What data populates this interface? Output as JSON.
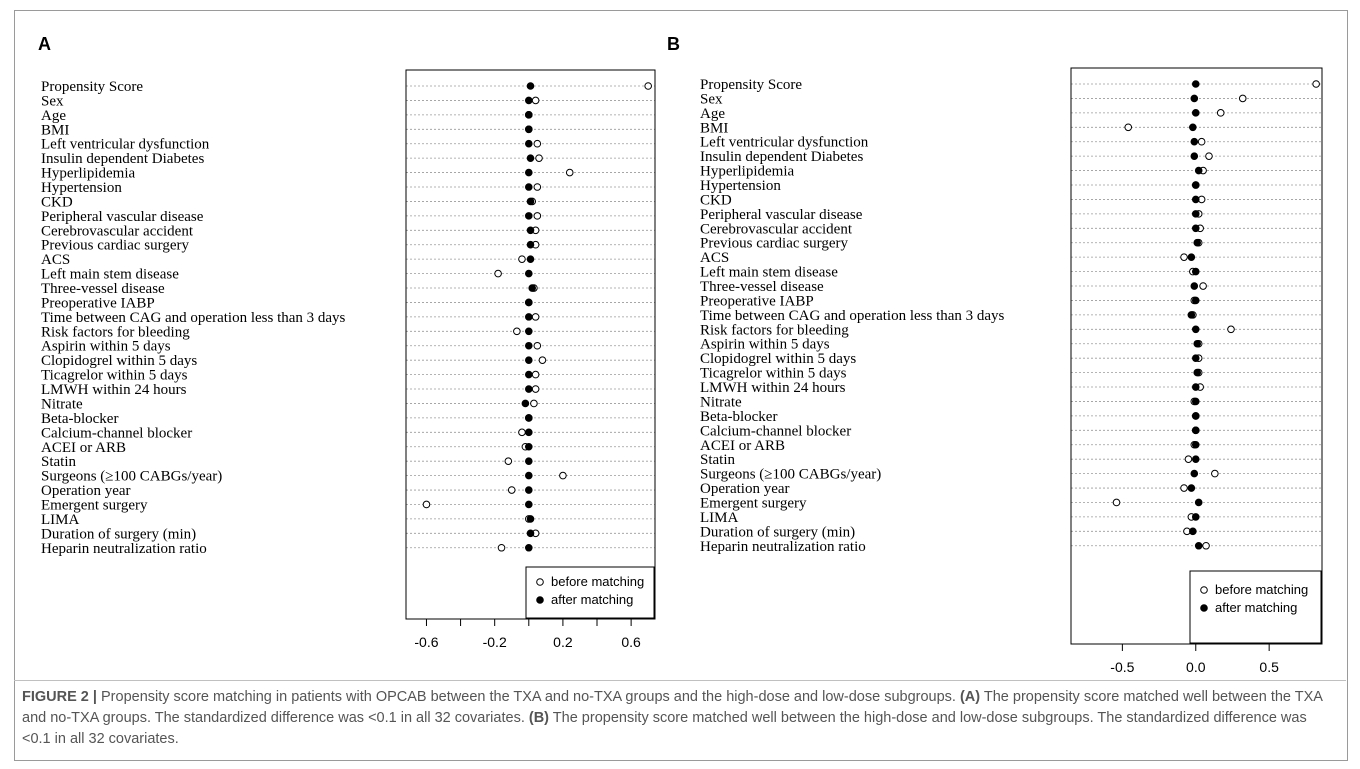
{
  "caption": {
    "prefix": "FIGURE 2 |",
    "intro": "Propensity score matching in patients with OPCAB between the TXA and no-TXA groups and the high-dose and low-dose subgroups.",
    "a_tag": "(A)",
    "a_text": "The propensity score matched well between the TXA and no-TXA groups. The standardized difference was <0.1 in all 32 covariates.",
    "b_tag": "(B)",
    "b_text": "The propensity score matched well between the high-dose and low-dose subgroups. The standardized difference was <0.1 in all 32 covariates."
  },
  "chart_data": [
    {
      "type": "scatter",
      "panel": "A",
      "xlim": [
        -0.72,
        0.74
      ],
      "xticks": [
        -0.6,
        -0.4,
        -0.2,
        0.0,
        0.2,
        0.4,
        0.6
      ],
      "xtick_labels": [
        "-0.6",
        "",
        "-0.2",
        "",
        "0.2",
        "",
        "0.6"
      ],
      "grid": "horizontal dotted",
      "legend_position": "bottom-right",
      "legend": [
        "before matching",
        "after matching"
      ],
      "categories": [
        "Propensity Score",
        "Sex",
        "Age",
        "BMI",
        "Left ventricular dysfunction",
        "Insulin dependent Diabetes",
        "Hyperlipidemia",
        "Hypertension",
        "CKD",
        "Peripheral vascular disease",
        "Cerebrovascular accident",
        "Previous cardiac surgery",
        "ACS",
        "Left main stem disease",
        "Three-vessel disease",
        "Preoperative IABP",
        "Time between CAG and operation less than 3 days",
        "Risk factors for bleeding",
        "Aspirin within 5 days",
        "Clopidogrel within 5 days",
        "Ticagrelor within 5 days",
        "LMWH within 24 hours",
        "Nitrate",
        "Beta-blocker",
        "Calcium-channel blocker",
        "ACEI or ARB",
        "Statin",
        "Surgeons (≥100 CABGs/year)",
        "Operation year",
        "Emergent surgery",
        "LIMA",
        "Duration of surgery (min)",
        "Heparin neutralization ratio"
      ],
      "series": [
        {
          "name": "before matching",
          "values": [
            0.7,
            0.04,
            0.0,
            0.0,
            0.05,
            0.06,
            0.24,
            0.05,
            0.02,
            0.05,
            0.04,
            0.04,
            -0.04,
            -0.18,
            0.03,
            0.0,
            0.04,
            -0.07,
            0.05,
            0.08,
            0.04,
            0.04,
            0.03,
            0.0,
            -0.04,
            -0.02,
            -0.12,
            0.2,
            -0.1,
            -0.6,
            0.0,
            0.04,
            -0.16
          ]
        },
        {
          "name": "after matching",
          "values": [
            0.01,
            0.0,
            0.0,
            0.0,
            0.0,
            0.01,
            0.0,
            0.0,
            0.01,
            0.0,
            0.01,
            0.01,
            0.01,
            0.0,
            0.02,
            0.0,
            0.0,
            0.0,
            0.0,
            0.0,
            0.0,
            0.0,
            -0.02,
            0.0,
            0.0,
            0.0,
            0.0,
            0.0,
            0.0,
            0.0,
            0.01,
            0.01,
            0.0
          ]
        }
      ]
    },
    {
      "type": "scatter",
      "panel": "B",
      "xlim": [
        -0.85,
        0.86
      ],
      "xticks": [
        -0.5,
        0.0,
        0.5
      ],
      "xtick_labels": [
        "-0.5",
        "0.0",
        "0.5"
      ],
      "grid": "horizontal dotted",
      "legend_position": "bottom-right",
      "legend": [
        "before matching",
        "after matching"
      ],
      "categories": [
        "Propensity Score",
        "Sex",
        "Age",
        "BMI",
        "Left ventricular dysfunction",
        "Insulin dependent Diabetes",
        "Hyperlipidemia",
        "Hypertension",
        "CKD",
        "Peripheral vascular disease",
        "Cerebrovascular accident",
        "Previous cardiac surgery",
        "ACS",
        "Left main stem disease",
        "Three-vessel disease",
        "Preoperative IABP",
        "Time between CAG and operation less than 3 days",
        "Risk factors for bleeding",
        "Aspirin within 5 days",
        "Clopidogrel within 5 days",
        "Ticagrelor within 5 days",
        "LMWH within 24 hours",
        "Nitrate",
        "Beta-blocker",
        "Calcium-channel blocker",
        "ACEI or ARB",
        "Statin",
        "Surgeons (≥100 CABGs/year)",
        "Operation year",
        "Emergent surgery",
        "LIMA",
        "Duration of surgery (min)",
        "Heparin neutralization ratio"
      ],
      "series": [
        {
          "name": "before matching",
          "values": [
            0.82,
            0.32,
            0.17,
            -0.46,
            0.04,
            0.09,
            0.05,
            0.0,
            0.04,
            0.02,
            0.03,
            0.02,
            -0.08,
            -0.02,
            0.05,
            -0.01,
            -0.02,
            0.24,
            0.02,
            0.02,
            0.02,
            0.03,
            -0.01,
            0.0,
            0.0,
            -0.01,
            -0.05,
            0.13,
            -0.08,
            -0.54,
            -0.03,
            -0.06,
            0.07
          ]
        },
        {
          "name": "after matching",
          "values": [
            0.0,
            -0.01,
            0.0,
            -0.02,
            -0.01,
            -0.01,
            0.02,
            0.0,
            0.0,
            0.0,
            0.0,
            0.01,
            -0.03,
            0.0,
            -0.01,
            0.0,
            -0.03,
            0.0,
            0.01,
            0.0,
            0.01,
            0.0,
            0.0,
            0.0,
            0.0,
            0.0,
            0.0,
            -0.01,
            -0.03,
            0.02,
            0.0,
            -0.02,
            0.02
          ]
        }
      ]
    }
  ]
}
